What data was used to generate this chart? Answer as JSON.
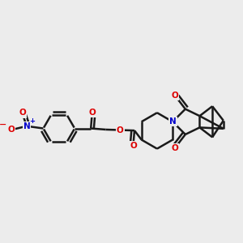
{
  "bg_color": "#ececec",
  "bond_color": "#1a1a1a",
  "oxygen_color": "#dd0000",
  "nitrogen_color": "#0000cc",
  "bond_lw": 1.8,
  "figsize": [
    3.0,
    3.0
  ],
  "dpi": 100,
  "xlim": [
    0,
    10
  ],
  "ylim": [
    2.5,
    8.5
  ]
}
